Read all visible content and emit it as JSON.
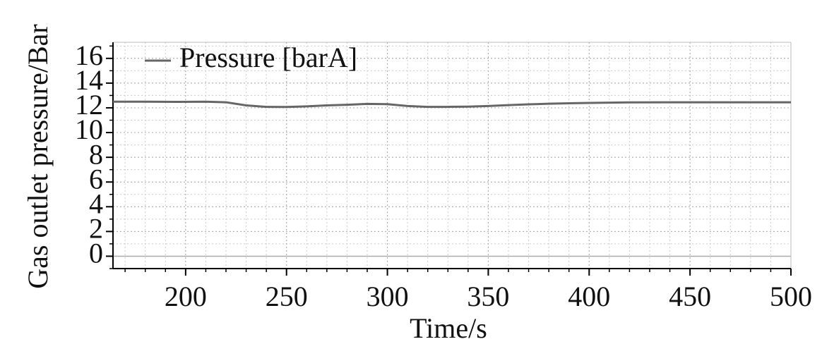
{
  "chart_data": {
    "type": "line",
    "x_label": "Time/s",
    "y_label": "Gas outlet pressure/Bar",
    "x": [
      164,
      180,
      195,
      210,
      220,
      230,
      240,
      250,
      260,
      270,
      280,
      290,
      300,
      310,
      320,
      330,
      340,
      350,
      360,
      370,
      380,
      390,
      400,
      420,
      440,
      460,
      480,
      500
    ],
    "series": [
      {
        "name": "Pressure [barA]",
        "color": "#666666",
        "values": [
          12.5,
          12.5,
          12.48,
          12.5,
          12.45,
          12.2,
          12.08,
          12.07,
          12.12,
          12.2,
          12.25,
          12.32,
          12.3,
          12.15,
          12.08,
          12.08,
          12.1,
          12.15,
          12.22,
          12.28,
          12.33,
          12.37,
          12.4,
          12.44,
          12.45,
          12.45,
          12.45,
          12.45
        ]
      }
    ],
    "xlim": [
      164,
      500
    ],
    "ylim": [
      -1,
      17.3
    ],
    "xticks": [
      200,
      250,
      300,
      350,
      400,
      450,
      500
    ],
    "yticks": [
      0,
      2,
      4,
      6,
      8,
      10,
      12,
      14,
      16
    ],
    "grid": true,
    "zero_line": true,
    "legend": "upper left"
  }
}
